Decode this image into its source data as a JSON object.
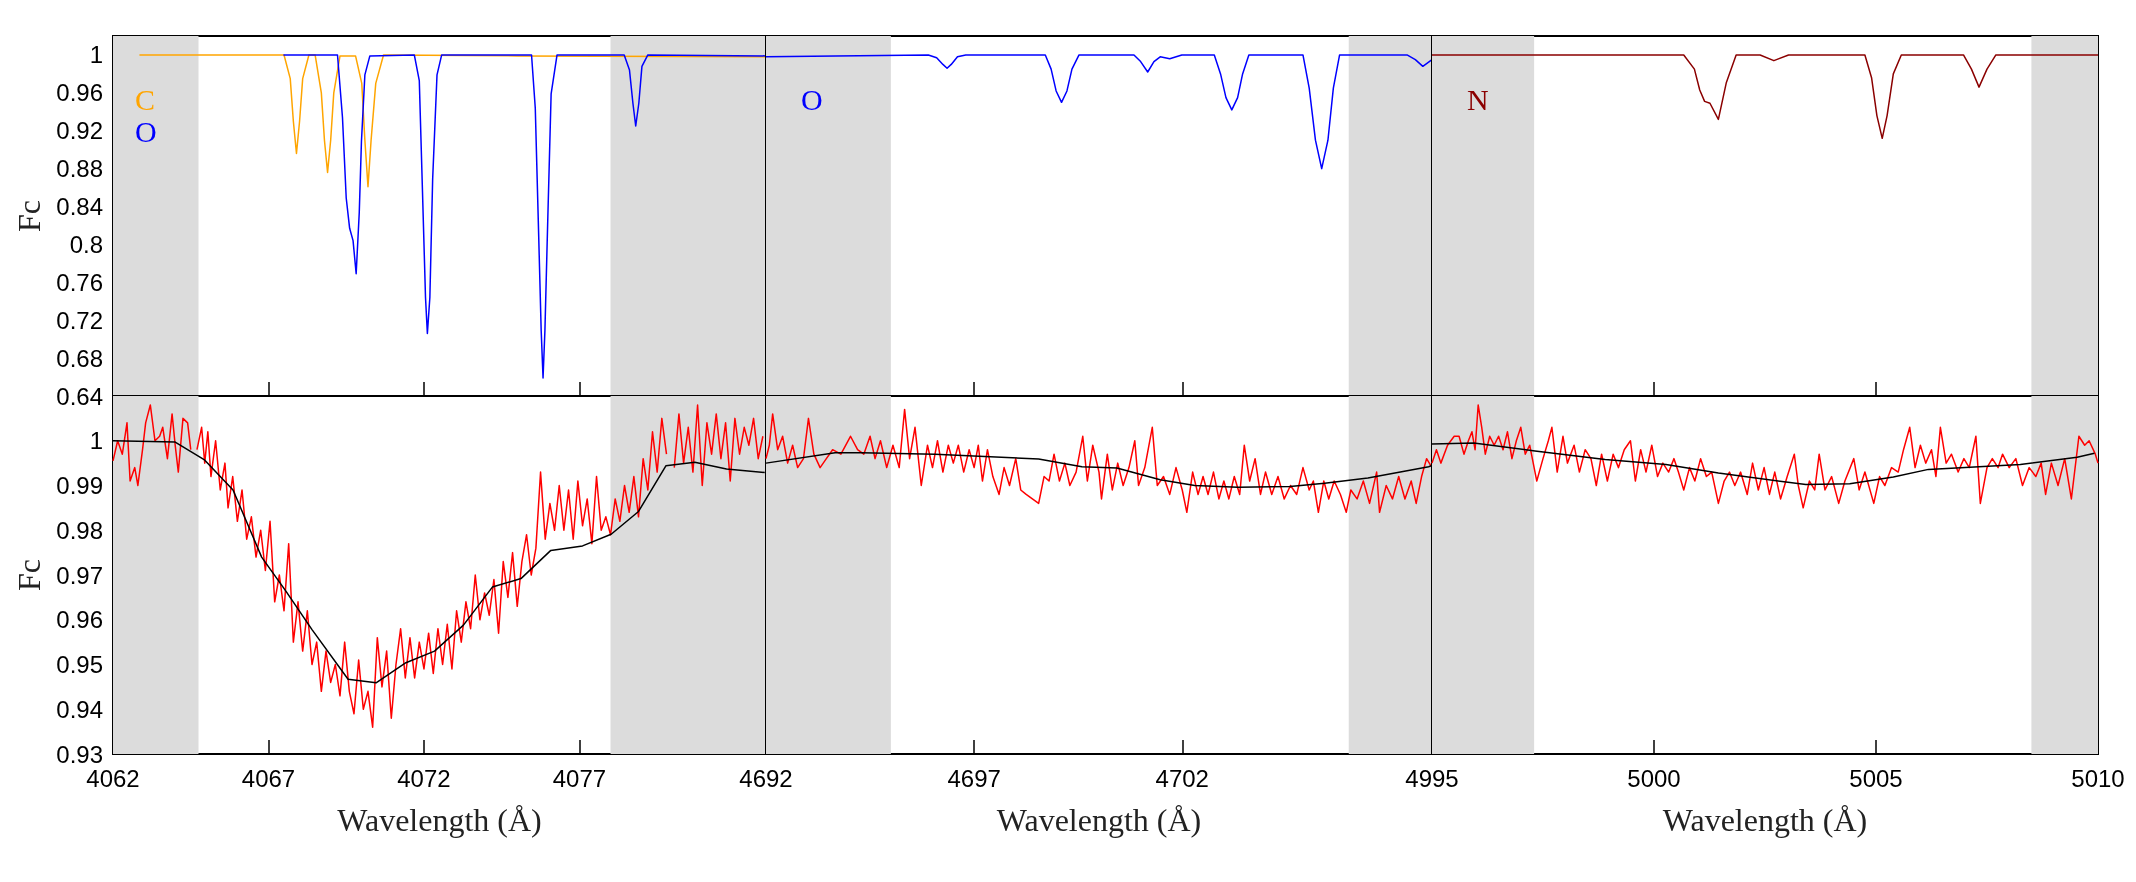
{
  "chart_data": [
    {
      "type": "line",
      "ylabel": "Fc",
      "xlim": [
        4062,
        4083
      ],
      "xticks": [
        4062,
        4067,
        4072,
        4077
      ],
      "ylim": [
        0.64,
        1.02
      ],
      "yticks": [
        0.64,
        0.68,
        0.72,
        0.76,
        0.8,
        0.84,
        0.88,
        0.92,
        0.96,
        1
      ],
      "tick_labels": "y",
      "legend": "top left",
      "bands": [
        {
          "axis": "x",
          "from": 4062,
          "to": 4064.75,
          "color": "#dcdcdc"
        },
        {
          "axis": "x",
          "from": 4078,
          "to": 4083,
          "color": "#dcdcdc"
        }
      ],
      "series": [
        {
          "name": "C",
          "color": "#ffa500",
          "x": [
            4062.85,
            4067.5,
            4067.7,
            4067.8,
            4067.9,
            4068.0,
            4068.1,
            4068.3,
            4068.5,
            4068.7,
            4068.8,
            4068.9,
            4069.0,
            4069.1,
            4069.3,
            4069.8,
            4070.0,
            4070.1,
            4070.2,
            4070.3,
            4070.45,
            4070.7,
            4075,
            4083
          ],
          "values": [
            1.0,
            1.0,
            0.975,
            0.93,
            0.896,
            0.93,
            0.975,
            1.0,
            1.0,
            0.96,
            0.91,
            0.876,
            0.91,
            0.96,
            0.999,
            0.999,
            0.97,
            0.91,
            0.861,
            0.91,
            0.97,
            1.0,
            0.999,
            0.998
          ]
        },
        {
          "name": "O",
          "color": "#0000ff",
          "x": [
            4067.48,
            4069.22,
            4069.38,
            4069.5,
            4069.61,
            4069.72,
            4069.82,
            4069.92,
            4069.99,
            4070.1,
            4070.26,
            4071.69,
            4071.85,
            4071.95,
            4072.05,
            4072.11,
            4072.19,
            4072.28,
            4072.42,
            4072.57,
            4075.46,
            4075.58,
            4075.69,
            4075.77,
            4075.83,
            4075.89,
            4075.98,
            4076.09,
            4076.28,
            4078.44,
            4078.61,
            4078.72,
            4078.81,
            4078.91,
            4079.01,
            4079.2,
            4083
          ],
          "values": [
            1.0,
            1.0,
            0.934,
            0.849,
            0.817,
            0.804,
            0.769,
            0.834,
            0.909,
            0.979,
            0.999,
            1.0,
            0.973,
            0.859,
            0.744,
            0.706,
            0.744,
            0.869,
            0.979,
            1.0,
            1.0,
            0.944,
            0.809,
            0.709,
            0.659,
            0.709,
            0.824,
            0.959,
            1.0,
            1.0,
            0.984,
            0.949,
            0.925,
            0.949,
            0.988,
            1.0,
            0.999
          ]
        }
      ]
    },
    {
      "type": "line",
      "xlim": [
        4692,
        4708
      ],
      "xticks": [
        4692,
        4697,
        4702
      ],
      "ylim": [
        0.64,
        1.02
      ],
      "yticks": [
        0.64,
        0.68,
        0.72,
        0.76,
        0.8,
        0.84,
        0.88,
        0.92,
        0.96,
        1
      ],
      "tick_labels": false,
      "legend": "top left",
      "bands": [
        {
          "axis": "x",
          "from": 4692,
          "to": 4695,
          "color": "#dcdcdc"
        },
        {
          "axis": "x",
          "from": 4706,
          "to": 4708,
          "color": "#dcdcdc"
        }
      ],
      "series": [
        {
          "name": "O",
          "color": "#0000ff",
          "x": [
            4692,
            4695.9,
            4696.1,
            4696.25,
            4696.35,
            4696.45,
            4696.6,
            4696.8,
            4698.71,
            4698.85,
            4698.97,
            4699.1,
            4699.23,
            4699.35,
            4699.52,
            4700.84,
            4701.0,
            4701.17,
            4701.32,
            4701.47,
            4701.7,
            4701.99,
            4702.77,
            4702.92,
            4703.05,
            4703.19,
            4703.33,
            4703.45,
            4703.6,
            4704.9,
            4705.05,
            4705.2,
            4705.35,
            4705.5,
            4705.63,
            4705.78,
            4707.4,
            4707.6,
            4707.78,
            4708
          ],
          "values": [
            0.998,
            1.0,
            0.997,
            0.99,
            0.986,
            0.99,
            0.998,
            1.0,
            1.0,
            0.985,
            0.962,
            0.95,
            0.962,
            0.985,
            1.0,
            1.0,
            0.993,
            0.982,
            0.993,
            0.998,
            0.996,
            1.0,
            1.0,
            0.98,
            0.955,
            0.942,
            0.955,
            0.98,
            1.0,
            1.0,
            0.965,
            0.91,
            0.88,
            0.91,
            0.965,
            1.0,
            1.0,
            0.995,
            0.988,
            0.995
          ]
        }
      ]
    },
    {
      "type": "line",
      "xlim": [
        4995,
        5010
      ],
      "xticks": [
        4995,
        5000,
        5005,
        5010
      ],
      "ylim": [
        0.64,
        1.02
      ],
      "yticks": [
        0.64,
        0.68,
        0.72,
        0.76,
        0.8,
        0.84,
        0.88,
        0.92,
        0.96,
        1
      ],
      "tick_labels": false,
      "legend": "top left",
      "bands": [
        {
          "axis": "x",
          "from": 4995,
          "to": 4997.3,
          "color": "#dcdcdc"
        },
        {
          "axis": "x",
          "from": 5008.5,
          "to": 5010,
          "color": "#dcdcdc"
        }
      ],
      "series": [
        {
          "name": "N",
          "color": "#8b0000",
          "x": [
            4995,
            5000.67,
            5000.91,
            5001.03,
            5001.14,
            5001.26,
            5001.45,
            5001.63,
            5001.85,
            5002.39,
            5002.7,
            5003.03,
            5004.75,
            5004.9,
            5005.02,
            5005.14,
            5005.25,
            5005.39,
            5005.57,
            5006.97,
            5007.15,
            5007.32,
            5007.5,
            5007.7,
            5010
          ],
          "values": [
            1.0,
            1.0,
            0.985,
            0.963,
            0.951,
            0.949,
            0.932,
            0.971,
            1.0,
            1.0,
            0.994,
            1.0,
            1.0,
            0.976,
            0.936,
            0.912,
            0.936,
            0.98,
            1.0,
            1.0,
            0.985,
            0.966,
            0.985,
            1.0,
            1.0
          ]
        }
      ]
    },
    {
      "type": "line",
      "xlabel": "Wavelength (Å)",
      "ylabel": "Fc",
      "xlim": [
        4062,
        4083
      ],
      "xticks": [
        4062,
        4067,
        4072,
        4077
      ],
      "ylim": [
        0.93,
        1.01
      ],
      "yticks": [
        0.93,
        0.94,
        0.95,
        0.96,
        0.97,
        0.98,
        0.99,
        1
      ],
      "bands": [
        {
          "axis": "x",
          "from": 4062,
          "to": 4064.75,
          "color": "#dcdcdc"
        },
        {
          "axis": "x",
          "from": 4078,
          "to": 4083,
          "color": "#dcdcdc"
        }
      ],
      "series": [
        {
          "color": "#ff0000",
          "x": [
            4062.0,
            4062.15,
            4062.3,
            4062.45,
            4062.55,
            4062.7,
            4062.8,
            4062.95,
            4063.05,
            4063.2,
            4063.35,
            4063.5,
            4063.6,
            4063.75,
            4063.9,
            4064.0,
            4064.1,
            4064.25,
            4064.4,
            4064.5,
            4064.6,
            4064.7,
            4064.85,
            4064.95,
            4065.05,
            4065.15,
            4065.3,
            4065.45,
            4065.6,
            4065.7,
            4065.85,
            4066.0,
            4066.15,
            4066.3,
            4066.45,
            4066.6,
            4066.75,
            4066.9,
            4067.05,
            4067.2,
            4067.35,
            4067.5,
            4067.65,
            4067.8,
            4067.95,
            4068.1,
            4068.25,
            4068.4,
            4068.55,
            4068.7,
            4068.85,
            4069.0,
            4069.15,
            4069.3,
            4069.45,
            4069.6,
            4069.75,
            4069.9,
            4070.05,
            4070.2,
            4070.35,
            4070.5,
            4070.65,
            4070.8,
            4070.95,
            4071.1,
            4071.25,
            4071.4,
            4071.55,
            4071.7,
            4071.85,
            4072.0,
            4072.15,
            4072.3,
            4072.45,
            4072.6,
            4072.75,
            4072.9,
            4073.05,
            4073.2,
            4073.35,
            4073.5,
            4073.65,
            4073.8,
            4073.95,
            4074.1,
            4074.25,
            4074.4,
            4074.55,
            4074.7,
            4074.85,
            4075.0,
            4075.15,
            4075.3,
            4075.45,
            4075.6,
            4075.75,
            4075.9,
            4076.05,
            4076.2,
            4076.35,
            4076.5,
            4076.65,
            4076.8,
            4076.95,
            4077.1,
            4077.25,
            4077.4,
            4077.55,
            4077.7,
            4077.85,
            4078.0,
            4078.15,
            4078.3,
            4078.45,
            4078.6,
            4078.75,
            4078.9,
            4079.05,
            4079.2,
            4079.35,
            4079.5,
            4079.65,
            4079.8,
            4079.9,
            4080.05,
            4080.2,
            4080.35,
            4080.5,
            4080.65,
            4080.8,
            4080.95,
            4081.1,
            4081.25,
            4081.4,
            4081.55,
            4081.7,
            4081.85,
            4082.0,
            4082.15,
            4082.3,
            4082.45,
            4082.6,
            4082.75,
            4082.9
          ],
          "values": [
            0.9955,
            1.0,
            0.997,
            1.004,
            0.991,
            0.994,
            0.99,
            0.998,
            1.004,
            1.008,
            1.0,
            1.001,
            1.003,
            0.996,
            1.006,
            0.999,
            0.993,
            1.005,
            1.004,
            0.998,
            null,
            0.998,
            1.003,
            0.995,
            1.002,
            0.992,
            1.0,
            0.989,
            0.995,
            0.985,
            0.992,
            0.982,
            0.989,
            0.978,
            0.983,
            0.974,
            0.98,
            0.971,
            0.982,
            0.964,
            0.97,
            0.962,
            0.977,
            0.955,
            0.964,
            0.953,
            0.962,
            0.95,
            0.955,
            0.944,
            0.953,
            0.946,
            0.95,
            0.943,
            0.955,
            0.944,
            0.939,
            0.951,
            0.94,
            0.944,
            0.936,
            0.956,
            0.945,
            0.953,
            0.938,
            0.95,
            0.958,
            0.947,
            0.956,
            0.947,
            0.955,
            0.949,
            0.957,
            0.948,
            0.958,
            0.95,
            0.959,
            0.949,
            0.962,
            0.955,
            0.964,
            0.958,
            0.97,
            0.96,
            0.966,
            0.961,
            0.969,
            0.957,
            0.973,
            0.965,
            0.975,
            0.963,
            0.973,
            0.979,
            0.97,
            0.976,
            0.993,
            0.978,
            0.986,
            0.98,
            0.99,
            0.98,
            0.989,
            0.978,
            0.991,
            0.981,
            0.987,
            0.977,
            0.992,
            0.98,
            0.983,
            0.979,
            0.987,
            0.982,
            0.99,
            0.984,
            0.992,
            0.983,
            0.996,
            0.989,
            1.002,
            0.993,
            1.005,
            0.997,
            null,
            0.994,
            1.006,
            0.995,
            1.003,
            0.993,
            1.008,
            0.99,
            1.004,
            0.997,
            1.006,
            0.996,
            1.004,
            0.991,
            1.005,
            0.997,
            1.003,
            0.999,
            1.005,
            0.996,
            1.001
          ]
        },
        {
          "color": "#000000",
          "x": [
            4062.0,
            4064.0,
            4064.93,
            4065.86,
            4066.78,
            4067.56,
            4068.4,
            4069.56,
            4070.46,
            4071.42,
            4072.34,
            4073.27,
            4074.2,
            4075.12,
            4076.08,
            4077.1,
            4078.02,
            4078.9,
            4079.78,
            4080.71,
            4081.73,
            4082.96
          ],
          "values": [
            1.0,
            0.9997,
            0.9958,
            0.989,
            0.974,
            0.9664,
            0.9578,
            0.9467,
            0.9459,
            0.9504,
            0.953,
            0.9588,
            0.9673,
            0.9692,
            0.9755,
            0.9765,
            0.9791,
            0.9842,
            0.9944,
            0.9952,
            0.9937,
            0.9929
          ]
        }
      ]
    },
    {
      "type": "line",
      "xlabel": "Wavelength (Å)",
      "xlim": [
        4692,
        4708
      ],
      "xticks": [
        4692,
        4697,
        4702
      ],
      "ylim": [
        0.93,
        1.01
      ],
      "yticks": [
        0.93,
        0.94,
        0.95,
        0.96,
        0.97,
        0.98,
        0.99,
        1
      ],
      "tick_labels": "x",
      "bands": [
        {
          "axis": "x",
          "from": 4692,
          "to": 4695,
          "color": "#dcdcdc"
        },
        {
          "axis": "x",
          "from": 4706,
          "to": 4708,
          "color": "#dcdcdc"
        }
      ],
      "series": [
        {
          "color": "#ff0000",
          "x": [
            4692.0,
            4692.08,
            4692.16,
            4692.28,
            4692.4,
            4692.52,
            4692.64,
            4692.76,
            4692.9,
            4693.02,
            4693.15,
            4693.3,
            4693.45,
            4693.6,
            4693.8,
            4694.03,
            4694.2,
            4694.35,
            4694.5,
            4694.62,
            4694.75,
            4694.9,
            4695.05,
            4695.2,
            4695.33,
            4695.45,
            4695.58,
            4695.73,
            4695.88,
            4696.0,
            4696.12,
            4696.25,
            4696.38,
            4696.5,
            4696.62,
            4696.75,
            4696.88,
            4697.0,
            4697.1,
            4697.2,
            4697.32,
            4697.45,
            4697.6,
            4697.72,
            4697.85,
            4698.0,
            4698.12,
            4698.25,
            4698.4,
            4698.55,
            4698.68,
            4698.8,
            4698.92,
            4699.05,
            4699.18,
            4699.3,
            4699.45,
            4699.61,
            4699.72,
            4699.85,
            4700.0,
            4700.06,
            4700.2,
            4700.32,
            4700.45,
            4700.58,
            4700.72,
            4700.86,
            4700.95,
            4701.1,
            4701.28,
            4701.4,
            4701.55,
            4701.7,
            4701.85,
            4702.0,
            4702.11,
            4702.25,
            4702.38,
            4702.5,
            4702.62,
            4702.75,
            4702.88,
            4703.0,
            4703.12,
            4703.25,
            4703.38,
            4703.49,
            4703.62,
            4703.75,
            4703.88,
            4704.0,
            4704.15,
            4704.3,
            4704.45,
            4704.6,
            4704.75,
            4704.9,
            4705.05,
            4705.15,
            4705.27,
            4705.4,
            4705.52,
            4705.65,
            4705.8,
            4705.94,
            4706.05,
            4706.2,
            4706.35,
            4706.5,
            4706.67,
            4706.74,
            4706.9,
            4707.05,
            4707.2,
            4707.35,
            4707.5,
            4707.62,
            4707.75,
            4707.87,
            4708.0
          ],
          "values": [
            0.996,
            0.999,
            1.006,
            0.998,
            1.001,
            0.995,
            0.999,
            0.994,
            0.996,
            1.005,
            0.997,
            0.994,
            0.996,
            0.998,
            0.997,
            1.001,
            0.998,
            0.997,
            1.001,
            0.996,
            1.0,
            0.994,
            0.999,
            0.994,
            1.007,
            0.996,
            1.003,
            0.99,
            0.999,
            0.994,
            1.0,
            0.993,
            0.999,
            0.995,
            0.999,
            0.993,
            0.998,
            0.994,
            0.999,
            0.991,
            0.998,
            0.992,
            0.988,
            0.994,
            0.99,
            0.996,
            0.989,
            0.988,
            0.987,
            0.986,
            0.992,
            0.991,
            0.997,
            0.991,
            0.995,
            0.99,
            0.993,
            1.001,
            0.991,
            0.999,
            0.993,
            0.987,
            0.997,
            0.989,
            0.995,
            0.99,
            0.994,
            1.0,
            0.99,
            0.994,
            1.003,
            0.99,
            0.992,
            0.988,
            0.994,
            0.989,
            0.984,
            0.993,
            0.988,
            0.992,
            0.988,
            0.993,
            0.987,
            0.991,
            0.987,
            0.992,
            0.988,
            0.999,
            0.991,
            0.996,
            0.988,
            0.993,
            0.988,
            0.992,
            0.987,
            0.99,
            0.988,
            0.994,
            0.989,
            0.991,
            0.984,
            0.991,
            0.987,
            0.991,
            0.988,
            0.984,
            0.989,
            0.987,
            0.991,
            0.986,
            0.993,
            0.984,
            0.99,
            0.987,
            0.992,
            0.987,
            0.991,
            0.986,
            0.992,
            0.996,
            0.994
          ]
        },
        {
          "color": "#000000",
          "x": [
            4692.0,
            4693.66,
            4694.29,
            4696.06,
            4698.55,
            4699.59,
            4700.43,
            4701.47,
            4702.3,
            4703.34,
            4704.59,
            4705.42,
            4706.46,
            4707.92,
            4708.0
          ],
          "values": [
            0.995,
            0.9973,
            0.9973,
            0.997,
            0.9959,
            0.9942,
            0.9939,
            0.9913,
            0.99,
            0.9896,
            0.9898,
            0.9905,
            0.9917,
            0.9942,
            0.9945
          ]
        }
      ]
    },
    {
      "type": "line",
      "xlabel": "Wavelength (Å)",
      "xlim": [
        4995,
        5010
      ],
      "xticks": [
        4995,
        5000,
        5005,
        5010
      ],
      "ylim": [
        0.93,
        1.01
      ],
      "yticks": [
        0.93,
        0.94,
        0.95,
        0.96,
        0.97,
        0.98,
        0.99,
        1
      ],
      "tick_labels": "x",
      "bands": [
        {
          "axis": "x",
          "from": 4995,
          "to": 4997.3,
          "color": "#dcdcdc"
        },
        {
          "axis": "x",
          "from": 5008.5,
          "to": 5010,
          "color": "#dcdcdc"
        }
      ],
      "series": [
        {
          "color": "#ff0000",
          "x": [
            4995.0,
            4995.1,
            4995.2,
            4995.35,
            4995.5,
            4995.61,
            4995.72,
            4995.82,
            4995.9,
            4995.97,
            4996.04,
            4996.12,
            4996.2,
            4996.3,
            4996.4,
            4996.5,
            4996.6,
            4996.7,
            4996.8,
            4996.9,
            4997.0,
            4997.1,
            4997.2,
            4997.36,
            4997.5,
            4997.62,
            4997.7,
            4997.82,
            4997.95,
            4998.05,
            4998.2,
            4998.32,
            4998.45,
            4998.58,
            4998.7,
            4998.82,
            4998.95,
            4999.08,
            4999.2,
            4999.33,
            4999.47,
            4999.58,
            4999.7,
            4999.82,
            4999.95,
            5000.08,
            5000.2,
            5000.33,
            5000.45,
            5000.55,
            5000.67,
            5000.8,
            5000.92,
            5001.05,
            5001.18,
            5001.3,
            5001.45,
            5001.58,
            5001.7,
            5001.82,
            5001.95,
            5002.1,
            5002.22,
            5002.35,
            5002.48,
            5002.6,
            5002.72,
            5002.85,
            5003.0,
            5003.16,
            5003.25,
            5003.36,
            5003.5,
            5003.62,
            5003.72,
            5003.85,
            5004.0,
            5004.16,
            5004.3,
            5004.5,
            5004.62,
            5004.75,
            5004.95,
            5005.08,
            5005.2,
            5005.35,
            5005.5,
            5005.62,
            5005.76,
            5005.88,
            5006.0,
            5006.12,
            5006.25,
            5006.35,
            5006.45,
            5006.58,
            5006.7,
            5006.85,
            5006.98,
            5007.1,
            5007.25,
            5007.35,
            5007.5,
            5007.62,
            5007.75,
            5007.85,
            5008.0,
            5008.15,
            5008.3,
            5008.45,
            5008.6,
            5008.72,
            5008.82,
            5008.95,
            5009.1,
            5009.25,
            5009.4,
            5009.57,
            5009.7,
            5009.8,
            5009.94,
            5010.0
          ],
          "values": [
            0.995,
            0.998,
            0.995,
            0.999,
            1.001,
            1.001,
            0.997,
            1.0,
            1.002,
            0.998,
            1.008,
            1.003,
            0.997,
            1.001,
            0.999,
            1.001,
            0.998,
            1.002,
            0.996,
            1.0,
            1.003,
            0.997,
            0.999,
            0.991,
            0.996,
            1.0,
            1.003,
            0.993,
            1.001,
            0.995,
            0.999,
            0.993,
            0.998,
            0.996,
            0.99,
            0.997,
            0.991,
            0.997,
            0.994,
            0.998,
            1.0,
            0.991,
            0.998,
            0.993,
            0.999,
            0.992,
            0.995,
            0.993,
            0.996,
            0.993,
            0.989,
            0.994,
            0.991,
            0.996,
            0.992,
            0.993,
            0.986,
            0.991,
            0.993,
            0.99,
            0.993,
            0.988,
            0.995,
            0.989,
            0.994,
            0.988,
            0.993,
            0.987,
            0.992,
            0.997,
            0.99,
            0.985,
            0.991,
            0.989,
            0.997,
            0.989,
            0.992,
            0.986,
            0.991,
            0.996,
            0.989,
            0.993,
            0.986,
            0.992,
            0.99,
            0.994,
            0.993,
            0.998,
            1.003,
            0.994,
            0.999,
            0.995,
            0.998,
            0.992,
            1.003,
            0.995,
            0.997,
            0.993,
            0.996,
            0.994,
            1.001,
            0.986,
            0.994,
            0.996,
            0.994,
            0.997,
            0.994,
            0.996,
            0.99,
            0.994,
            0.992,
            0.995,
            0.988,
            0.995,
            0.99,
            0.996,
            0.987,
            1.001,
            0.999,
            1.0,
            0.997,
            0.995
          ]
        },
        {
          "color": "#000000",
          "x": [
            4995.0,
            4995.94,
            4997.32,
            4998.9,
            5000.27,
            5001.45,
            5003.42,
            5004.41,
            5005.39,
            5006.18,
            5008.25,
            5009.53,
            5009.92
          ],
          "values": [
            0.9993,
            0.9995,
            0.9977,
            0.9958,
            0.9947,
            0.9928,
            0.9902,
            0.9904,
            0.9919,
            0.9936,
            0.9947,
            0.9963,
            0.9972
          ]
        }
      ]
    }
  ]
}
